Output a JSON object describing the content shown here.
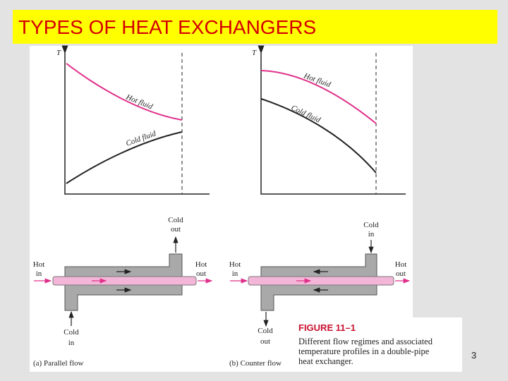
{
  "header": {
    "title": "TYPES OF HEAT EXCHANGERS"
  },
  "figure": {
    "panels": [
      {
        "axis_label": "T",
        "hot_curve_label": "Hot fluid",
        "cold_curve_label": "Cold fluid",
        "hot_in": [
          "Hot",
          "in"
        ],
        "hot_out": [
          "Hot",
          "out"
        ],
        "cold_in": [
          "Cold",
          "in"
        ],
        "cold_out": [
          "Cold",
          "out"
        ],
        "caption": "(a) Parallel flow"
      },
      {
        "axis_label": "T",
        "hot_curve_label": "Hot fluid",
        "cold_curve_label": "Cold fluid",
        "hot_in": [
          "Hot",
          "in"
        ],
        "hot_out": [
          "Hot",
          "out"
        ],
        "cold_in": [
          "Cold",
          "in"
        ],
        "cold_out": [
          "Cold",
          "out"
        ],
        "caption": "(b) Counter flow"
      }
    ],
    "caption": {
      "label": "FIGURE 11–1",
      "text": [
        "Different flow regimes and associated",
        "temperature profiles in a double-pipe",
        "heat exchanger."
      ]
    }
  },
  "footer": {
    "page_number": "3"
  }
}
